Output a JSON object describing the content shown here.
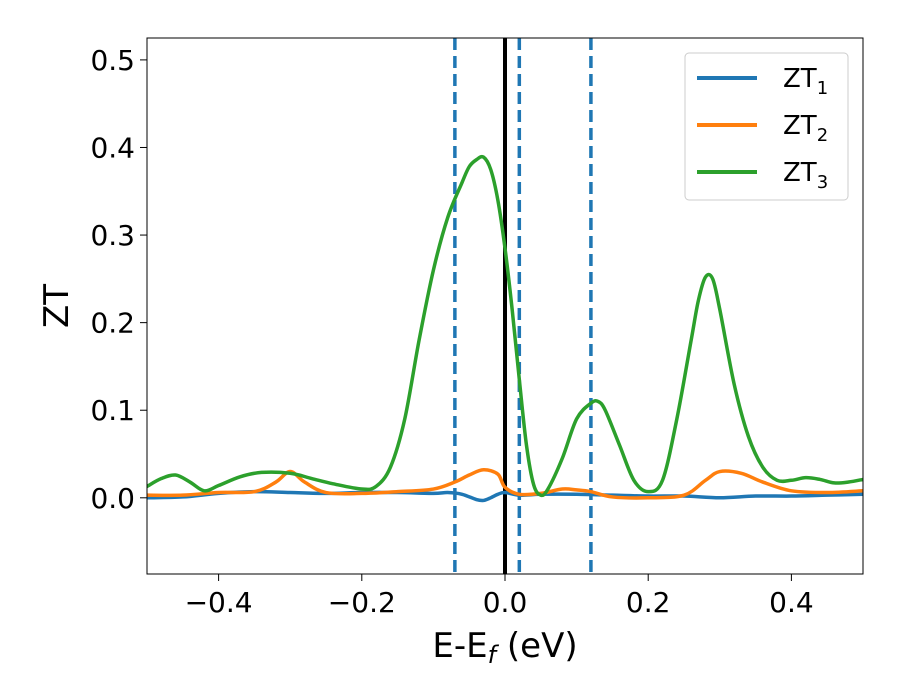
{
  "chart_data": {
    "type": "line",
    "xlabel": "E-E_f (eV)",
    "ylabel": "ZT",
    "xlim": [
      -0.5,
      0.5
    ],
    "ylim": [
      -0.087,
      0.525
    ],
    "xticks": [
      -0.4,
      -0.2,
      0.0,
      0.2,
      0.4
    ],
    "xtick_labels": [
      "−0.4",
      "−0.2",
      "0.0",
      "0.2",
      "0.4"
    ],
    "yticks": [
      0.0,
      0.1,
      0.2,
      0.3,
      0.4,
      0.5
    ],
    "ytick_labels": [
      "0.0",
      "0.1",
      "0.2",
      "0.3",
      "0.4",
      "0.5"
    ],
    "grid": false,
    "legend_position": "top-right",
    "vertical_lines": [
      {
        "x": 0.0,
        "style": "solid",
        "color": "#000000"
      },
      {
        "x": -0.07,
        "style": "dashed",
        "color": "#1f77b4"
      },
      {
        "x": 0.02,
        "style": "dashed",
        "color": "#1f77b4"
      },
      {
        "x": 0.12,
        "style": "dashed",
        "color": "#1f77b4"
      }
    ],
    "series": [
      {
        "name": "ZT",
        "subscript": "1",
        "color": "#1f77b4",
        "x": [
          -0.5,
          -0.45,
          -0.4,
          -0.35,
          -0.3,
          -0.25,
          -0.2,
          -0.15,
          -0.1,
          -0.08,
          -0.06,
          -0.04,
          -0.03,
          -0.02,
          -0.01,
          0.0,
          0.02,
          0.05,
          0.1,
          0.15,
          0.2,
          0.25,
          0.3,
          0.35,
          0.4,
          0.45,
          0.5
        ],
        "y": [
          0.0,
          0.001,
          0.005,
          0.007,
          0.006,
          0.005,
          0.006,
          0.006,
          0.005,
          0.006,
          0.004,
          -0.002,
          -0.003,
          0.0,
          0.004,
          0.006,
          0.003,
          0.004,
          0.004,
          0.003,
          0.002,
          0.002,
          0.0,
          0.002,
          0.002,
          0.003,
          0.004
        ]
      },
      {
        "name": "ZT",
        "subscript": "2",
        "color": "#ff7f0e",
        "x": [
          -0.5,
          -0.45,
          -0.4,
          -0.35,
          -0.32,
          -0.3,
          -0.28,
          -0.25,
          -0.2,
          -0.15,
          -0.1,
          -0.07,
          -0.05,
          -0.03,
          -0.01,
          0.0,
          0.02,
          0.05,
          0.08,
          0.1,
          0.12,
          0.15,
          0.2,
          0.25,
          0.28,
          0.3,
          0.33,
          0.36,
          0.4,
          0.45,
          0.5
        ],
        "y": [
          0.003,
          0.003,
          0.006,
          0.007,
          0.018,
          0.03,
          0.018,
          0.006,
          0.005,
          0.007,
          0.01,
          0.018,
          0.026,
          0.032,
          0.027,
          0.012,
          0.004,
          0.005,
          0.01,
          0.009,
          0.007,
          0.001,
          0.0,
          0.003,
          0.02,
          0.03,
          0.028,
          0.018,
          0.008,
          0.006,
          0.008
        ]
      },
      {
        "name": "ZT",
        "subscript": "3",
        "color": "#2ca02c",
        "x": [
          -0.5,
          -0.48,
          -0.46,
          -0.44,
          -0.42,
          -0.4,
          -0.37,
          -0.34,
          -0.3,
          -0.27,
          -0.24,
          -0.2,
          -0.18,
          -0.16,
          -0.14,
          -0.12,
          -0.1,
          -0.08,
          -0.06,
          -0.05,
          -0.04,
          -0.03,
          -0.02,
          -0.01,
          0.0,
          0.01,
          0.02,
          0.03,
          0.04,
          0.05,
          0.06,
          0.08,
          0.1,
          0.12,
          0.13,
          0.14,
          0.16,
          0.18,
          0.2,
          0.22,
          0.24,
          0.26,
          0.27,
          0.28,
          0.29,
          0.3,
          0.32,
          0.34,
          0.36,
          0.38,
          0.4,
          0.42,
          0.44,
          0.46,
          0.48,
          0.5
        ],
        "y": [
          0.013,
          0.022,
          0.026,
          0.018,
          0.008,
          0.014,
          0.024,
          0.029,
          0.028,
          0.022,
          0.016,
          0.01,
          0.013,
          0.035,
          0.09,
          0.18,
          0.26,
          0.32,
          0.36,
          0.378,
          0.386,
          0.389,
          0.375,
          0.34,
          0.285,
          0.215,
          0.135,
          0.06,
          0.015,
          0.003,
          0.01,
          0.045,
          0.09,
          0.108,
          0.11,
          0.1,
          0.06,
          0.02,
          0.007,
          0.02,
          0.09,
          0.18,
          0.225,
          0.252,
          0.25,
          0.215,
          0.13,
          0.07,
          0.035,
          0.02,
          0.02,
          0.023,
          0.021,
          0.017,
          0.018,
          0.021
        ]
      }
    ]
  }
}
